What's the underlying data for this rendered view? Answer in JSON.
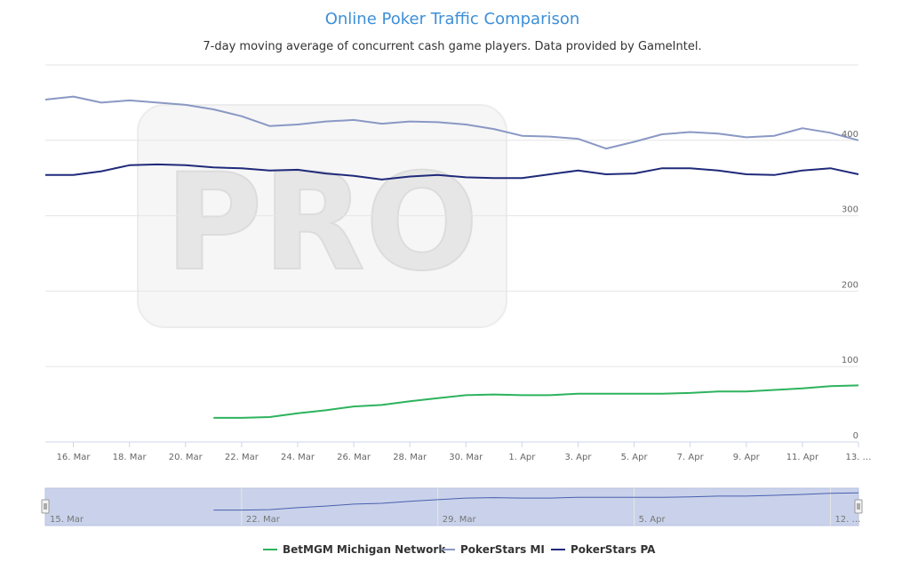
{
  "chart_data": {
    "type": "line",
    "title": "Online Poker Traffic Comparison",
    "subtitle": "7-day moving average of concurrent cash game players. Data provided by GameIntel.",
    "watermark": "PRO",
    "xlabel": "",
    "ylabel": "",
    "x_unit": "day",
    "x_start": "15 Mar",
    "x_end": "13 Apr",
    "xlim": [
      0,
      29
    ],
    "ylim": [
      0,
      500
    ],
    "y_ticks": [
      "0",
      "100",
      "200",
      "300",
      "400"
    ],
    "x_ticks": [
      "16. Mar",
      "18. Mar",
      "20. Mar",
      "22. Mar",
      "24. Mar",
      "26. Mar",
      "28. Mar",
      "30. Mar",
      "1. Apr",
      "3. Apr",
      "5. Apr",
      "7. Apr",
      "9. Apr",
      "11. Apr",
      "13. …"
    ],
    "navigator_ticks": [
      "15. Mar",
      "22. Mar",
      "29. Mar",
      "5. Apr",
      "12. …"
    ],
    "grid": true,
    "legend_position": "bottom-center",
    "series": [
      {
        "name": "BetMGM Michigan Network",
        "color": "#2db35d",
        "start_day": 6,
        "values": [
          32,
          32,
          33,
          38,
          42,
          47,
          49,
          54,
          58,
          62,
          63,
          62,
          62,
          64,
          64,
          64,
          64,
          65,
          67,
          67,
          69,
          71,
          74,
          75
        ]
      },
      {
        "name": "PokerStars MI",
        "color": "#8a98c4",
        "start_day": 0,
        "values": [
          454,
          458,
          450,
          453,
          450,
          447,
          441,
          432,
          419,
          421,
          425,
          427,
          422,
          425,
          424,
          421,
          415,
          406,
          405,
          402,
          389,
          398,
          408,
          411,
          409,
          404,
          406,
          416,
          410,
          400
        ]
      },
      {
        "name": "PokerStars PA",
        "color": "#1f2a7a",
        "start_day": 0,
        "values": [
          354,
          354,
          359,
          367,
          368,
          367,
          364,
          363,
          360,
          361,
          356,
          353,
          348,
          352,
          354,
          351,
          350,
          350,
          355,
          360,
          355,
          356,
          363,
          363,
          360,
          355,
          354,
          360,
          363,
          355
        ]
      }
    ]
  }
}
